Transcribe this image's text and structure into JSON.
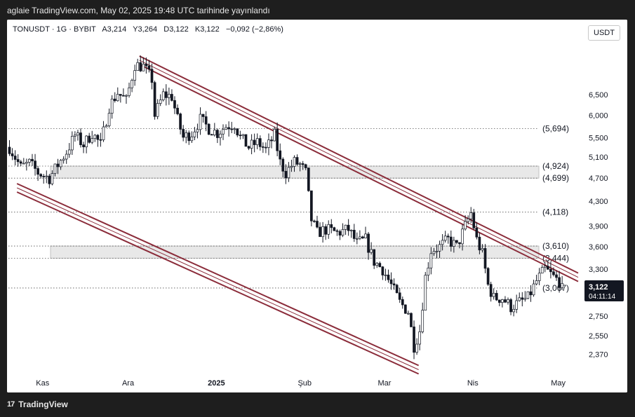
{
  "header": {
    "publish_line": "aglaie TradingView.com, May 02, 2025 19:48 UTC tarihinde yayınlandı"
  },
  "legend": {
    "symbol": "TONUSDT · 1G · BYBIT",
    "open": "A3,214",
    "high": "Y3,264",
    "low": "D3,122",
    "close": "K3,122",
    "change": "−0,092 (−2,86%)"
  },
  "unit_button": "USDT",
  "footer": {
    "logo_text": "17",
    "brand": "TradingView"
  },
  "price_badge": {
    "price": "3,122",
    "countdown": "04:11:14"
  },
  "colors": {
    "up": "#26a69a",
    "down": "#131722",
    "channel": "#8b2c3a",
    "zone_fill": "#e8e8e8",
    "badge_bg": "#131722",
    "grid_dots": "#555555"
  },
  "chart_data": {
    "type": "candlestick",
    "y_scale": "log",
    "ylim": [
      2.2,
      7.8
    ],
    "y_ticks": [
      "6,500",
      "6,000",
      "5,500",
      "5,100",
      "4,700",
      "4,300",
      "3,900",
      "3,600",
      "3,300",
      "2,750",
      "2,550",
      "2,370"
    ],
    "x_labels": [
      "Kas",
      "Ara",
      "2025",
      "Şub",
      "Mar",
      "Nis",
      "May"
    ],
    "x_label_dates": [
      "2024-11-01",
      "2024-12-01",
      "2025-01-01",
      "2025-02-01",
      "2025-03-01",
      "2025-04-01",
      "2025-05-01"
    ],
    "x_range": [
      "2024-10-20",
      "2025-05-08"
    ],
    "levels": [
      {
        "label": "(5,694)",
        "value": 5.694
      },
      {
        "label": "(4,924)",
        "value": 4.924
      },
      {
        "label": "(4,699)",
        "value": 4.699
      },
      {
        "label": "(4,118)",
        "value": 4.118
      },
      {
        "label": "(3,610)",
        "value": 3.61
      },
      {
        "label": "(3,444)",
        "value": 3.444
      },
      {
        "label": "(3,067)",
        "value": 3.067
      }
    ],
    "zones": [
      {
        "low": 4.699,
        "high": 4.924
      },
      {
        "low": 3.444,
        "high": 3.61
      }
    ],
    "channels": [
      {
        "name": "upper",
        "start": {
          "date": "2024-12-05",
          "price": 7.55
        },
        "end": {
          "date": "2025-05-08",
          "price": 3.25
        }
      },
      {
        "name": "lower",
        "start": {
          "date": "2024-10-23",
          "price": 4.6
        },
        "end": {
          "date": "2025-03-13",
          "price": 2.27
        }
      }
    ],
    "anchors": [
      [
        "2024-10-20",
        5.3
      ],
      [
        "2024-10-24",
        4.9
      ],
      [
        "2024-10-27",
        4.98
      ],
      [
        "2024-10-30",
        4.8
      ],
      [
        "2024-11-03",
        4.7
      ],
      [
        "2024-11-06",
        4.95
      ],
      [
        "2024-11-09",
        5.2
      ],
      [
        "2024-11-12",
        5.55
      ],
      [
        "2024-11-15",
        5.35
      ],
      [
        "2024-11-18",
        5.6
      ],
      [
        "2024-11-21",
        5.35
      ],
      [
        "2024-11-24",
        6.2
      ],
      [
        "2024-11-27",
        6.55
      ],
      [
        "2024-11-30",
        6.35
      ],
      [
        "2024-12-03",
        7.3
      ],
      [
        "2024-12-06",
        7.25
      ],
      [
        "2024-12-09",
        6.9
      ],
      [
        "2024-12-10",
        6.0
      ],
      [
        "2024-12-13",
        6.5
      ],
      [
        "2024-12-16",
        6.45
      ],
      [
        "2024-12-18",
        5.9
      ],
      [
        "2024-12-20",
        5.5
      ],
      [
        "2024-12-23",
        5.6
      ],
      [
        "2024-12-26",
        5.9
      ],
      [
        "2024-12-29",
        5.7
      ],
      [
        "2025-01-01",
        5.6
      ],
      [
        "2025-01-04",
        5.75
      ],
      [
        "2025-01-07",
        5.8
      ],
      [
        "2025-01-09",
        5.5
      ],
      [
        "2025-01-12",
        5.3
      ],
      [
        "2025-01-15",
        5.4
      ],
      [
        "2025-01-18",
        5.25
      ],
      [
        "2025-01-21",
        5.55
      ],
      [
        "2025-01-23",
        5.0
      ],
      [
        "2025-01-25",
        4.8
      ],
      [
        "2025-01-28",
        5.0
      ],
      [
        "2025-01-30",
        4.95
      ],
      [
        "2025-02-01",
        4.8
      ],
      [
        "2025-02-03",
        4.0
      ],
      [
        "2025-02-05",
        3.8
      ],
      [
        "2025-02-08",
        3.85
      ],
      [
        "2025-02-12",
        3.8
      ],
      [
        "2025-02-16",
        3.85
      ],
      [
        "2025-02-19",
        3.65
      ],
      [
        "2025-02-22",
        3.7
      ],
      [
        "2025-02-25",
        3.4
      ],
      [
        "2025-02-28",
        3.3
      ],
      [
        "2025-03-03",
        3.1
      ],
      [
        "2025-03-06",
        2.9
      ],
      [
        "2025-03-09",
        2.8
      ],
      [
        "2025-03-11",
        2.45
      ],
      [
        "2025-03-13",
        2.6
      ],
      [
        "2025-03-15",
        3.2
      ],
      [
        "2025-03-17",
        3.55
      ],
      [
        "2025-03-20",
        3.6
      ],
      [
        "2025-03-23",
        3.7
      ],
      [
        "2025-03-26",
        3.6
      ],
      [
        "2025-03-29",
        3.9
      ],
      [
        "2025-03-31",
        4.1
      ],
      [
        "2025-04-02",
        3.7
      ],
      [
        "2025-04-04",
        3.5
      ],
      [
        "2025-04-06",
        3.1
      ],
      [
        "2025-04-08",
        2.95
      ],
      [
        "2025-04-11",
        2.95
      ],
      [
        "2025-04-14",
        2.85
      ],
      [
        "2025-04-17",
        2.9
      ],
      [
        "2025-04-20",
        2.95
      ],
      [
        "2025-04-23",
        3.15
      ],
      [
        "2025-04-26",
        3.3
      ],
      [
        "2025-04-29",
        3.2
      ],
      [
        "2025-05-02",
        3.122
      ]
    ],
    "last_close": 3.122
  }
}
